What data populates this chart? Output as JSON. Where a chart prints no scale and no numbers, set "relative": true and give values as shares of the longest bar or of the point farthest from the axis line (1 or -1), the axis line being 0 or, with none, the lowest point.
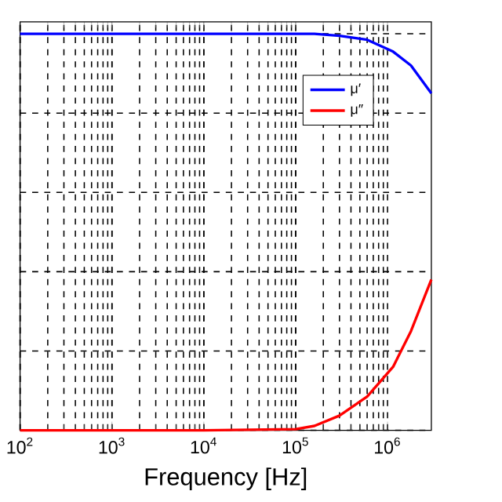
{
  "chart_data": {
    "type": "line",
    "relative": true,
    "xlabel": "Frequency [Hz]",
    "log": "x",
    "xlim": [
      100,
      3000000
    ],
    "xticks": [
      {
        "value": 100,
        "label": "10$^{2}$"
      },
      {
        "value": 1000,
        "label": "10$^{3}$"
      },
      {
        "value": 10000,
        "label": "10$^{4}$"
      },
      {
        "value": 100000,
        "label": "10$^{5}$"
      },
      {
        "value": 1000000,
        "label": "10$^{6}$"
      }
    ],
    "x": [
      100,
      1000,
      10000,
      100000,
      160000,
      300000,
      600000,
      1150000,
      1800000,
      3000000
    ],
    "series": [
      {
        "name": "μ′",
        "color": "#0000ff",
        "values": [
          1,
          1,
          1,
          1,
          1,
          0.995,
          0.985,
          0.955,
          0.92,
          0.85
        ]
      },
      {
        "name": "μ″",
        "color": "#ff0000",
        "values": [
          0,
          0,
          0,
          0.003,
          0.011,
          0.037,
          0.085,
          0.16,
          0.25,
          0.38
        ]
      }
    ],
    "grid": true,
    "legend": "top right",
    "tick_labels": "x",
    "marker": "none",
    "line_style": "solid"
  }
}
